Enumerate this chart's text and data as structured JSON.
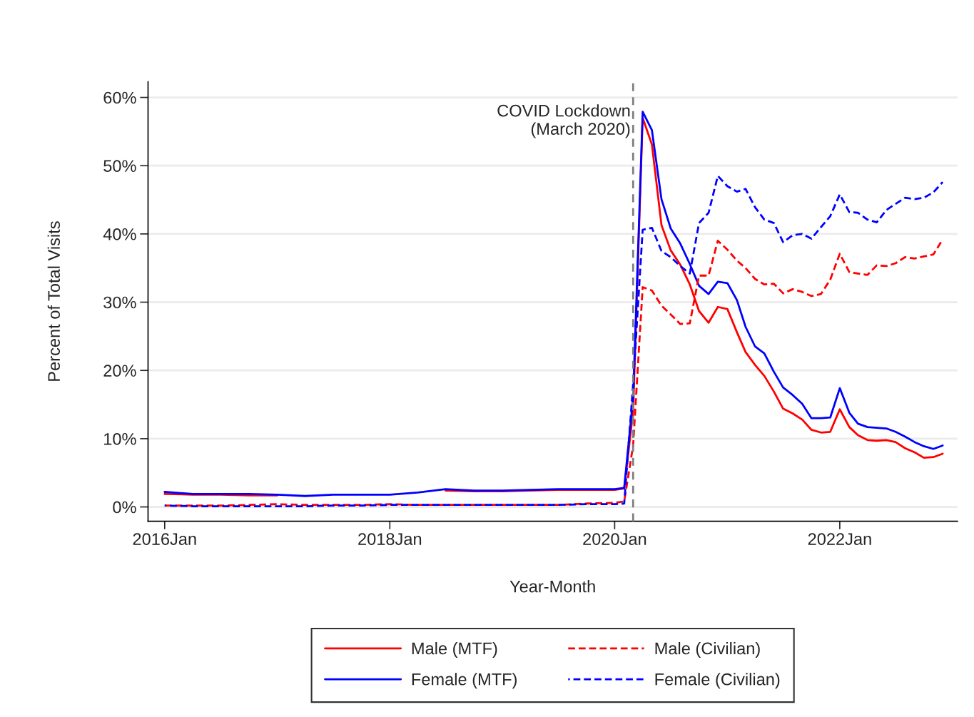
{
  "chart_data": {
    "type": "line",
    "xlabel": "Year-Month",
    "ylabel": "Percent of Total Visits",
    "x": [
      "2016-01",
      "2016-04",
      "2016-07",
      "2016-10",
      "2017-01",
      "2017-04",
      "2017-07",
      "2017-10",
      "2018-01",
      "2018-04",
      "2018-07",
      "2018-10",
      "2019-01",
      "2019-04",
      "2019-07",
      "2019-10",
      "2020-01",
      "2020-02",
      "2020-03",
      "2020-04",
      "2020-05",
      "2020-06",
      "2020-07",
      "2020-08",
      "2020-09",
      "2020-10",
      "2020-11",
      "2020-12",
      "2021-01",
      "2021-02",
      "2021-03",
      "2021-04",
      "2021-05",
      "2021-06",
      "2021-07",
      "2021-08",
      "2021-09",
      "2021-10",
      "2021-11",
      "2021-12",
      "2022-01",
      "2022-02",
      "2022-03",
      "2022-04",
      "2022-05",
      "2022-06",
      "2022-07",
      "2022-08",
      "2022-09",
      "2022-10",
      "2022-11",
      "2022-12"
    ],
    "series": [
      {
        "name": "Male (MTF)",
        "color": "#ff0000",
        "line_style": "solid",
        "values": [
          1.9,
          1.8,
          1.8,
          1.7,
          1.7,
          null,
          null,
          null,
          null,
          null,
          2.4,
          2.3,
          2.3,
          2.4,
          2.5,
          2.5,
          2.5,
          2.7,
          14,
          57.0,
          53.1,
          41.3,
          37.6,
          35.5,
          32.6,
          28.7,
          27.0,
          29.3,
          29.0,
          25.6,
          22.7,
          20.8,
          19.2,
          16.9,
          14.4,
          13.7,
          12.8,
          11.3,
          10.9,
          11.0,
          14.3,
          11.7,
          10.5,
          9.8,
          9.7,
          9.8,
          9.5,
          8.6,
          8.0,
          7.2,
          7.3,
          7.8
        ]
      },
      {
        "name": "Female (MTF)",
        "color": "#0000ff",
        "line_style": "solid",
        "values": [
          2.2,
          1.9,
          1.9,
          1.9,
          1.8,
          1.6,
          1.8,
          1.8,
          1.8,
          2.1,
          2.6,
          2.4,
          2.4,
          2.5,
          2.6,
          2.6,
          2.6,
          2.8,
          16,
          57.9,
          55.2,
          45.1,
          40.8,
          38.6,
          35.6,
          32.4,
          31.2,
          33.0,
          32.8,
          30.3,
          26.4,
          23.5,
          22.5,
          19.8,
          17.5,
          16.4,
          15.1,
          13.0,
          13.0,
          13.1,
          17.4,
          13.8,
          12.2,
          11.7,
          11.6,
          11.5,
          11.0,
          10.3,
          9.5,
          8.9,
          8.5,
          9.0
        ]
      },
      {
        "name": "Male (Civilian)",
        "color": "#ff0000",
        "line_style": "dashed",
        "values": [
          0.2,
          0.2,
          0.2,
          0.3,
          0.4,
          0.3,
          0.3,
          0.3,
          0.4,
          0.3,
          0.3,
          0.3,
          0.3,
          0.3,
          0.3,
          0.5,
          0.6,
          0.8,
          9,
          32.2,
          31.7,
          29.5,
          28.2,
          26.8,
          26.9,
          33.9,
          33.9,
          39.0,
          37.7,
          36.1,
          35.0,
          33.4,
          32.6,
          32.7,
          31.3,
          31.9,
          31.5,
          30.9,
          31.2,
          33.3,
          37.1,
          34.4,
          34.2,
          34.0,
          35.4,
          35.3,
          35.7,
          36.6,
          36.4,
          36.7,
          37.0,
          39.2
        ]
      },
      {
        "name": "Female (Civilian)",
        "color": "#0000ff",
        "line_style": "dashed",
        "values": [
          0.2,
          0.1,
          0.1,
          0.1,
          0.1,
          0.1,
          0.2,
          0.2,
          0.3,
          0.3,
          0.3,
          0.3,
          0.3,
          0.3,
          0.3,
          0.4,
          0.4,
          0.5,
          18,
          40.6,
          40.9,
          37.5,
          36.6,
          35.3,
          34.2,
          41.6,
          43.1,
          48.5,
          47.0,
          46.2,
          46.6,
          43.9,
          42.1,
          41.6,
          38.8,
          39.8,
          40.0,
          39.3,
          41.0,
          42.6,
          45.8,
          43.2,
          43.1,
          42.1,
          41.7,
          43.5,
          44.4,
          45.3,
          45.1,
          45.3,
          46.1,
          47.6
        ]
      }
    ],
    "xlim": [
      "2015-11-08",
      "2023-01-18"
    ],
    "xticks": [
      {
        "value": "2016-01",
        "label": "2016Jan"
      },
      {
        "value": "2018-01",
        "label": "2018Jan"
      },
      {
        "value": "2020-01",
        "label": "2020Jan"
      },
      {
        "value": "2022-01",
        "label": "2022Jan"
      }
    ],
    "ylim": [
      -2.1,
      62.3
    ],
    "yticks": [
      {
        "value": 0,
        "label": "0%"
      },
      {
        "value": 10,
        "label": "10%"
      },
      {
        "value": 20,
        "label": "20%"
      },
      {
        "value": 30,
        "label": "30%"
      },
      {
        "value": 40,
        "label": "40%"
      },
      {
        "value": 50,
        "label": "50%"
      },
      {
        "value": 60,
        "label": "60%"
      }
    ],
    "ref_lines": [
      {
        "axis": "x",
        "value": "2020-03",
        "label": "COVID Lockdown\n(March 2020)",
        "color": "#808080",
        "line_style": "dashed"
      }
    ],
    "grid": "y",
    "legend": "bottom",
    "marker": "none"
  }
}
